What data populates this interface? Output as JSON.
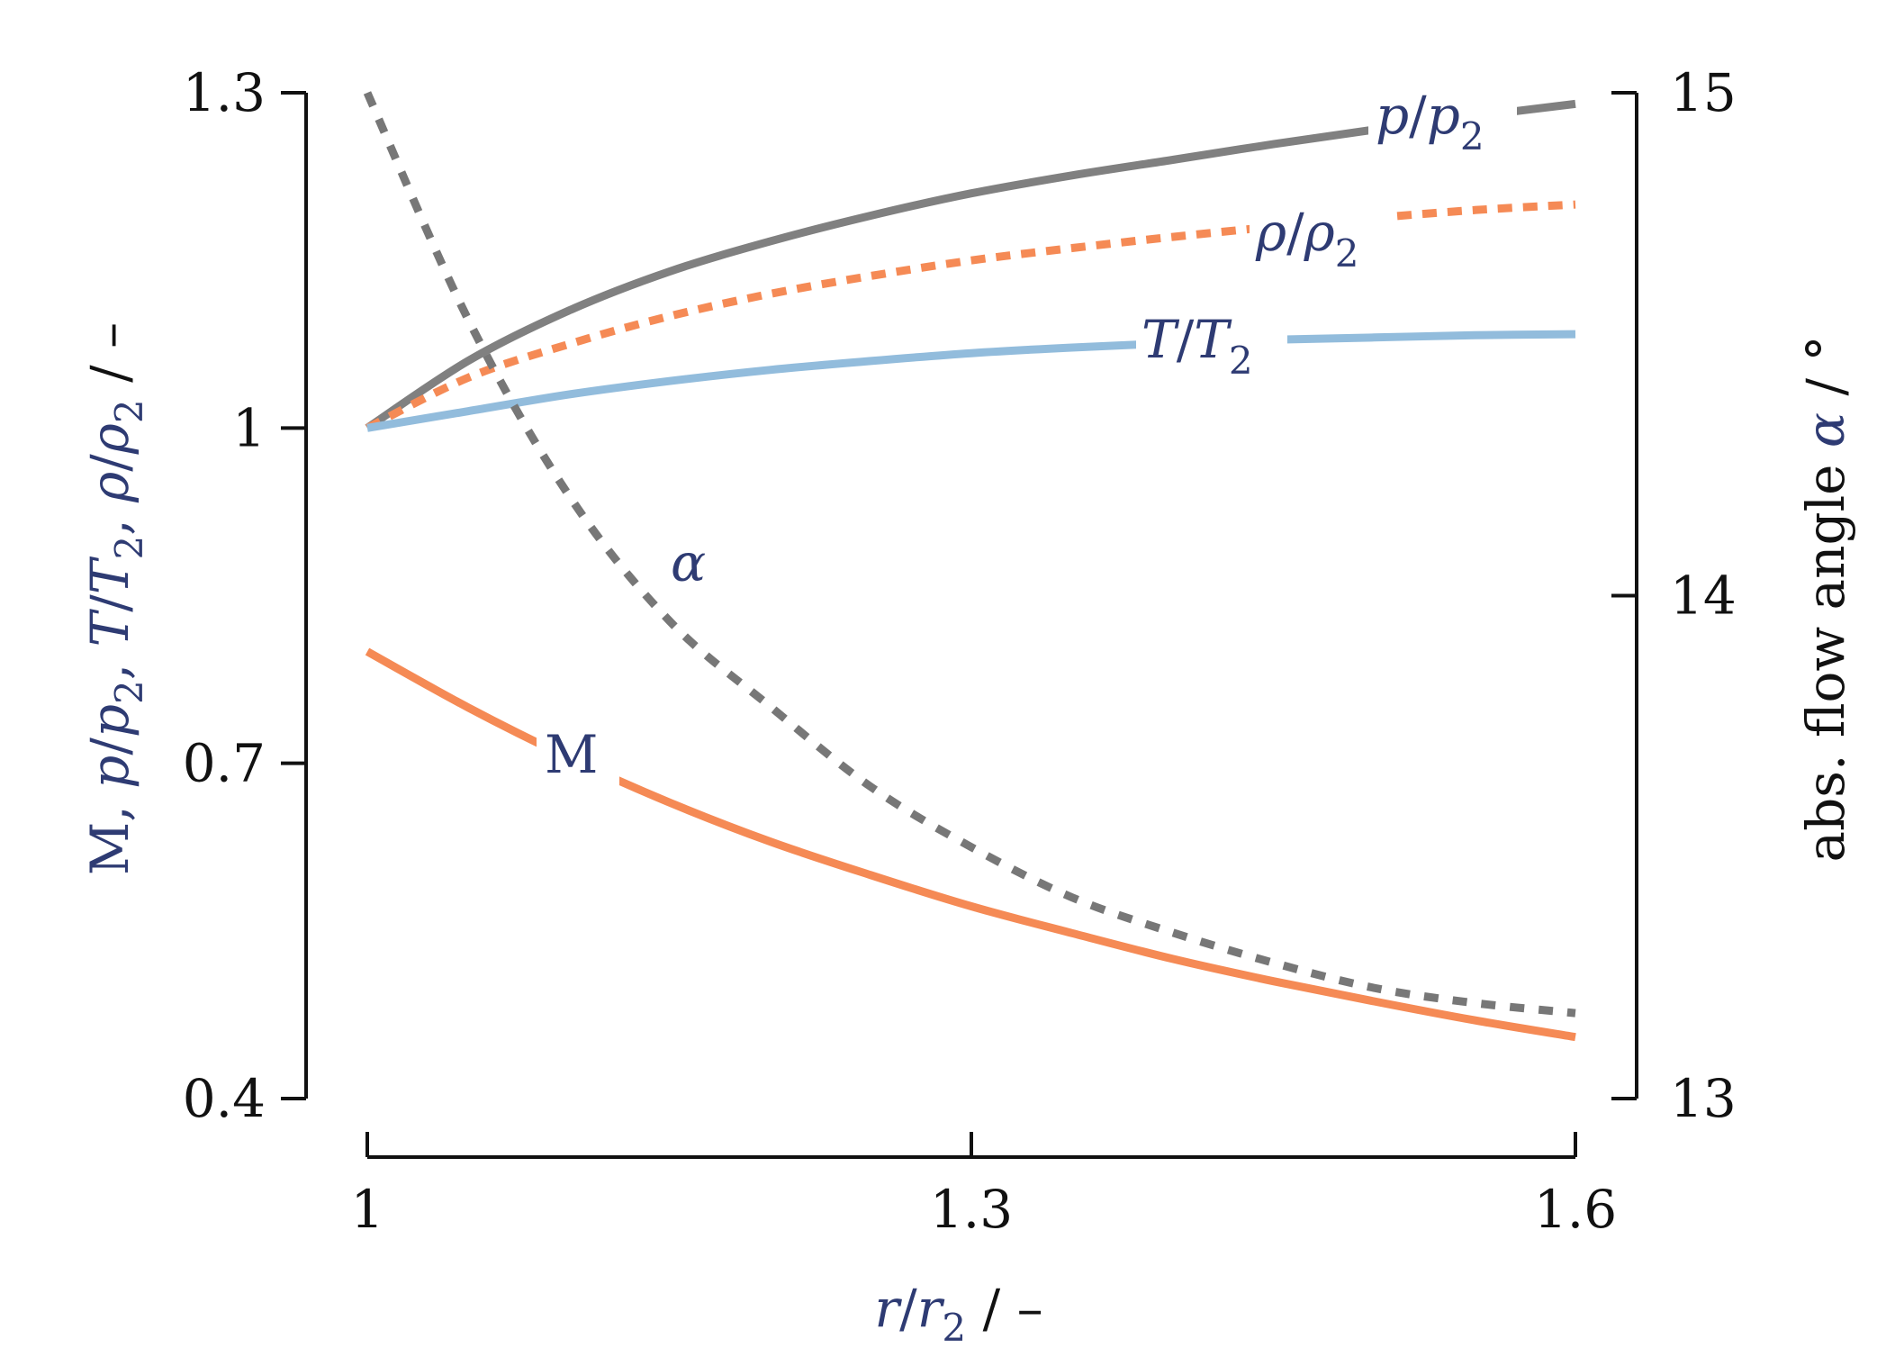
{
  "chart_data": {
    "type": "line",
    "x": [
      1.0,
      1.05,
      1.1,
      1.15,
      1.2,
      1.25,
      1.3,
      1.35,
      1.4,
      1.45,
      1.5,
      1.55,
      1.6
    ],
    "xlabel": {
      "var": "r",
      "var_den": "r",
      "sub": "2",
      "unit": " / –"
    },
    "xlim": [
      1.0,
      1.6
    ],
    "xticks": [
      "1",
      "1.3",
      "1.6"
    ],
    "xtick_values": [
      1.0,
      1.3,
      1.6
    ],
    "ylim_left": [
      0.4,
      1.3
    ],
    "yticks_left": [
      "0.4",
      "0.7",
      "1",
      "1.3"
    ],
    "ytick_values_left": [
      0.4,
      0.7,
      1.0,
      1.3
    ],
    "ylabel_left": {
      "m": "M,",
      "p": "p",
      "p_den": "p",
      "p_sub": "2",
      "t": "T",
      "t_den": "T",
      "t_sub": "2",
      "rho": "ρ",
      "rho_den": "ρ",
      "rho_sub": "2",
      "unit": " / –"
    },
    "ylim_right": [
      13,
      15
    ],
    "yticks_right": [
      "13",
      "14",
      "15"
    ],
    "ytick_values_right": [
      13,
      14,
      15
    ],
    "ylabel_right": {
      "text": "abs. flow angle ",
      "var": "α",
      "unit": " / °"
    },
    "series": [
      {
        "name": "p/p2",
        "axis": "left",
        "color": "#808080",
        "dash": "solid",
        "values": [
          1.0,
          1.06,
          1.105,
          1.14,
          1.167,
          1.19,
          1.21,
          1.226,
          1.24,
          1.254,
          1.267,
          1.279,
          1.29
        ]
      },
      {
        "name": "ρ/ρ2",
        "axis": "left",
        "color": "#f58a55",
        "dash": "dashed",
        "values": [
          1.0,
          1.045,
          1.075,
          1.1,
          1.12,
          1.136,
          1.15,
          1.161,
          1.171,
          1.18,
          1.188,
          1.195,
          1.2
        ]
      },
      {
        "name": "T/T2",
        "axis": "left",
        "color": "#92bcdc",
        "dash": "solid",
        "values": [
          1.0,
          1.015,
          1.03,
          1.042,
          1.052,
          1.06,
          1.067,
          1.072,
          1.076,
          1.079,
          1.081,
          1.083,
          1.084
        ]
      },
      {
        "name": "M",
        "axis": "left",
        "color": "#f58a55",
        "dash": "solid",
        "values": [
          0.8,
          0.75,
          0.705,
          0.665,
          0.63,
          0.6,
          0.572,
          0.548,
          0.525,
          0.505,
          0.487,
          0.47,
          0.455
        ]
      },
      {
        "name": "α",
        "axis": "right",
        "color": "#777777",
        "dash": "dotted",
        "values": [
          15.0,
          14.55,
          14.2,
          13.95,
          13.78,
          13.62,
          13.5,
          13.4,
          13.33,
          13.27,
          13.22,
          13.19,
          13.17
        ]
      }
    ],
    "annotations": [
      {
        "series": "p/p2",
        "text": "p",
        "den": "p",
        "sub": "2"
      },
      {
        "series": "ρ/ρ2",
        "text": "ρ",
        "den": "ρ",
        "sub": "2"
      },
      {
        "series": "T/T2",
        "text": "T",
        "den": "T",
        "sub": "2"
      },
      {
        "series": "M",
        "text": "M"
      },
      {
        "series": "α",
        "text": "α"
      }
    ],
    "grid": false,
    "legend": "none"
  },
  "colors": {
    "axis": "#111111",
    "label_blue": "#2e3b73",
    "gray_line": "#808080",
    "orange_line": "#f58a55",
    "blue_line": "#92bcdc",
    "alpha_line": "#777777"
  }
}
